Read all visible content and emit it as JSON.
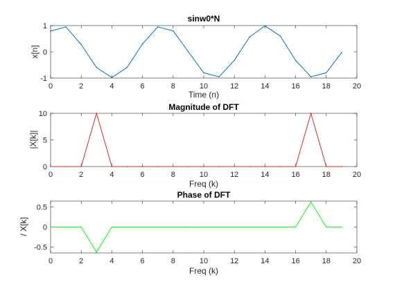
{
  "chart_data": [
    {
      "type": "line",
      "title": "sinw0*N",
      "xlabel": "Time (n)",
      "ylabel": "x[n]",
      "xlim": [
        0,
        20
      ],
      "ylim": [
        -1,
        1
      ],
      "xticks": [
        "0",
        "2",
        "4",
        "6",
        "8",
        "10",
        "12",
        "14",
        "16",
        "18",
        "20"
      ],
      "yticks": [
        "-1",
        "0",
        "1"
      ],
      "grid": false,
      "color": "#0072bd",
      "x": [
        0,
        1,
        2,
        3,
        4,
        5,
        6,
        7,
        8,
        9,
        10,
        11,
        12,
        13,
        14,
        15,
        16,
        17,
        18,
        19
      ],
      "y": [
        0.79,
        0.95,
        0.28,
        -0.6,
        -0.98,
        -0.59,
        0.3,
        0.95,
        0.8,
        0.0,
        -0.8,
        -0.95,
        -0.32,
        0.57,
        0.99,
        0.6,
        -0.33,
        -0.95,
        -0.8,
        -0.03
      ]
    },
    {
      "type": "line",
      "title": "Magnitude of DFT",
      "xlabel": "Freq (k)",
      "ylabel": "|X[k]|",
      "xlim": [
        0,
        20
      ],
      "ylim": [
        0,
        10
      ],
      "xticks": [
        "0",
        "2",
        "4",
        "6",
        "8",
        "10",
        "12",
        "14",
        "16",
        "18",
        "20"
      ],
      "yticks": [
        "0",
        "5",
        "10"
      ],
      "grid": false,
      "color": "#d62728",
      "x": [
        0,
        1,
        2,
        3,
        4,
        5,
        6,
        7,
        8,
        9,
        10,
        11,
        12,
        13,
        14,
        15,
        16,
        17,
        18,
        19
      ],
      "y": [
        0,
        0,
        0,
        10,
        0,
        0,
        0,
        0,
        0,
        0,
        0,
        0,
        0,
        0,
        0,
        0,
        0,
        10,
        0,
        0
      ]
    },
    {
      "type": "line",
      "title": "Phase of DFT",
      "xlabel": "Freq (k)",
      "ylabel": "/ X[k]",
      "xlim": [
        0,
        20
      ],
      "ylim": [
        -0.65,
        0.65
      ],
      "xticks": [
        "0",
        "2",
        "4",
        "6",
        "8",
        "10",
        "12",
        "14",
        "16",
        "18",
        "20"
      ],
      "yticks": [
        "-0.5",
        "0",
        "0.5"
      ],
      "ytick_values": [
        -0.5,
        0,
        0.5
      ],
      "grid": false,
      "color": "#00ff00",
      "x": [
        0,
        1,
        2,
        3,
        4,
        5,
        6,
        7,
        8,
        9,
        10,
        11,
        12,
        13,
        14,
        15,
        16,
        17,
        18,
        19
      ],
      "y": [
        0,
        0,
        0,
        -0.63,
        0,
        0,
        0,
        0,
        0,
        0,
        0,
        0,
        0,
        0,
        0,
        0,
        0,
        0.63,
        0,
        0
      ]
    }
  ]
}
